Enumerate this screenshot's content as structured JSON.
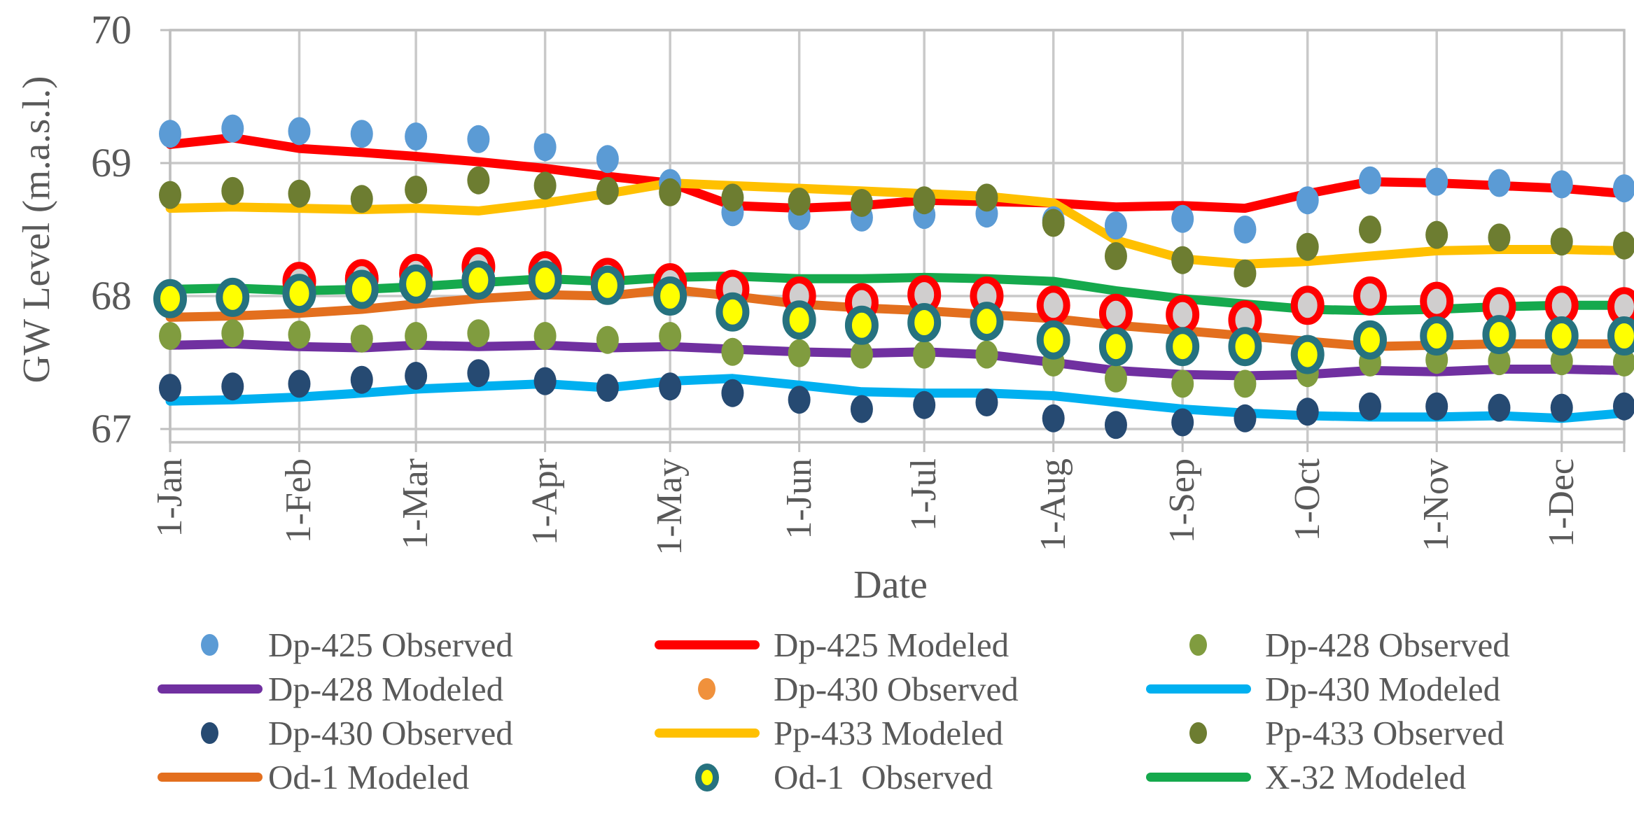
{
  "chart_data": {
    "type": "line",
    "title": "",
    "xlabel": "Date",
    "ylabel": "GW Level (m.a.s.l.)",
    "ylim": [
      66.9,
      70
    ],
    "y_ticks": [
      "70",
      "69",
      "68",
      "67"
    ],
    "x_ticks": [
      "1-Jan",
      "1-Feb",
      "1-Mar",
      "1-Apr",
      "1-May",
      "1-Jun",
      "1-Jul",
      "1-Aug",
      "1-Sep",
      "1-Oct",
      "1-Nov",
      "1-Dec"
    ],
    "x": [
      "1-Jan",
      "16-Jan",
      "1-Feb",
      "16-Feb",
      "1-Mar",
      "16-Mar",
      "1-Apr",
      "16-Apr",
      "1-May",
      "16-May",
      "1-Jun",
      "16-Jun",
      "1-Jul",
      "16-Jul",
      "1-Aug",
      "16-Aug",
      "1-Sep",
      "16-Sep",
      "1-Oct",
      "16-Oct",
      "1-Nov",
      "16-Nov",
      "1-Dec",
      "16-Dec"
    ],
    "grid": true,
    "legend_position": "bottom",
    "legend_rows": 4,
    "legend_cols": 3,
    "series": [
      {
        "name": "Dp-425 Observed",
        "style": "scatter",
        "color": "#5B9BD5",
        "values": [
          69.22,
          69.26,
          69.24,
          69.22,
          69.2,
          69.18,
          69.12,
          69.03,
          68.85,
          68.63,
          68.6,
          68.59,
          68.61,
          68.62,
          68.57,
          68.53,
          68.58,
          68.5,
          68.72,
          68.87,
          68.86,
          68.85,
          68.84,
          68.81
        ]
      },
      {
        "name": "Dp-425 Modeled",
        "style": "line",
        "color": "#FF0000",
        "values": [
          69.14,
          69.19,
          69.11,
          69.08,
          69.05,
          69.01,
          68.96,
          68.9,
          68.85,
          68.68,
          68.66,
          68.68,
          68.72,
          68.71,
          68.7,
          68.67,
          68.68,
          68.66,
          68.77,
          68.86,
          68.85,
          68.83,
          68.81,
          68.77
        ]
      },
      {
        "name": "Dp-428 Observed",
        "style": "scatter",
        "color": "#809C3F",
        "values": [
          67.7,
          67.72,
          67.71,
          67.68,
          67.7,
          67.72,
          67.7,
          67.67,
          67.7,
          67.58,
          67.57,
          67.56,
          67.56,
          67.56,
          67.5,
          67.38,
          67.34,
          67.34,
          67.42,
          67.5,
          67.52,
          67.51,
          67.51,
          67.5
        ]
      },
      {
        "name": "Dp-428 Modeled",
        "style": "line",
        "color": "#7030A0",
        "values": [
          67.63,
          67.64,
          67.62,
          67.61,
          67.63,
          67.62,
          67.63,
          67.61,
          67.62,
          67.6,
          67.58,
          67.57,
          67.58,
          67.56,
          67.5,
          67.44,
          67.41,
          67.4,
          67.41,
          67.44,
          67.43,
          67.45,
          67.45,
          67.44
        ]
      },
      {
        "name": "Dp-430 Observed",
        "style": "scatter-ring",
        "color": "#FF0000",
        "fill": "#D0CECE",
        "legend_marker_color": "#F0913C",
        "values": [
          null,
          null,
          68.11,
          68.13,
          68.17,
          68.22,
          68.19,
          68.14,
          68.1,
          68.05,
          68.0,
          67.95,
          68.01,
          68.0,
          67.93,
          67.87,
          67.86,
          67.82,
          67.93,
          68.0,
          67.96,
          67.92,
          67.93,
          67.92
        ]
      },
      {
        "name": "Dp-430 Modeled",
        "style": "line",
        "color": "#00B0F0",
        "values": [
          67.21,
          67.22,
          67.24,
          67.27,
          67.3,
          67.32,
          67.34,
          67.31,
          67.36,
          67.38,
          67.33,
          67.28,
          67.27,
          67.27,
          67.25,
          67.2,
          67.15,
          67.12,
          67.1,
          67.09,
          67.09,
          67.1,
          67.08,
          67.12
        ]
      },
      {
        "name": "Dp-430 Observed",
        "style": "scatter",
        "color": "#264A72",
        "values": [
          67.31,
          67.32,
          67.34,
          67.37,
          67.4,
          67.42,
          67.36,
          67.31,
          67.32,
          67.27,
          67.22,
          67.15,
          67.18,
          67.2,
          67.08,
          67.03,
          67.05,
          67.08,
          67.13,
          67.17,
          67.17,
          67.16,
          67.16,
          67.17
        ]
      },
      {
        "name": "Pp-433 Modeled",
        "style": "line",
        "color": "#FFC000",
        "values": [
          68.66,
          68.67,
          68.66,
          68.65,
          68.66,
          68.64,
          68.7,
          68.77,
          68.85,
          68.83,
          68.81,
          68.79,
          68.77,
          68.75,
          68.7,
          68.42,
          68.28,
          68.24,
          68.26,
          68.3,
          68.34,
          68.35,
          68.35,
          68.34
        ]
      },
      {
        "name": "Pp-433 Observed",
        "style": "scatter",
        "color": "#6D7D31",
        "values": [
          68.76,
          68.79,
          68.77,
          68.73,
          68.8,
          68.87,
          68.83,
          68.79,
          68.78,
          68.74,
          68.71,
          68.7,
          68.72,
          68.74,
          68.55,
          68.3,
          68.27,
          68.17,
          68.37,
          68.5,
          68.46,
          68.44,
          68.41,
          68.38
        ]
      },
      {
        "name": "Od-1 Modeled",
        "style": "line",
        "color": "#E36F1E",
        "values": [
          67.84,
          67.85,
          67.87,
          67.9,
          67.94,
          67.98,
          68.01,
          68.0,
          68.05,
          68.0,
          67.94,
          67.91,
          67.89,
          67.86,
          67.83,
          67.78,
          67.74,
          67.7,
          67.66,
          67.62,
          67.63,
          67.64,
          67.64,
          67.64
        ]
      },
      {
        "name": "Od-1  Observed",
        "style": "scatter-ring",
        "color": "#26727F",
        "fill": "#FFFF00",
        "values": [
          67.98,
          67.99,
          68.02,
          68.05,
          68.09,
          68.12,
          68.12,
          68.08,
          68.0,
          67.88,
          67.82,
          67.78,
          67.8,
          67.81,
          67.67,
          67.62,
          67.62,
          67.62,
          67.56,
          67.67,
          67.7,
          67.71,
          67.7,
          67.7
        ]
      },
      {
        "name": "X-32 Modeled",
        "style": "line",
        "color": "#15A94D",
        "values": [
          68.05,
          68.06,
          68.04,
          68.05,
          68.07,
          68.1,
          68.13,
          68.11,
          68.14,
          68.15,
          68.13,
          68.13,
          68.14,
          68.13,
          68.11,
          68.04,
          67.98,
          67.94,
          67.9,
          67.89,
          67.9,
          67.92,
          67.93,
          67.93
        ]
      }
    ]
  },
  "colors": {
    "text": "#595959",
    "gridline": "#C9C9C9",
    "axis_border": "#BFBFBF",
    "background": "#FFFFFF"
  }
}
